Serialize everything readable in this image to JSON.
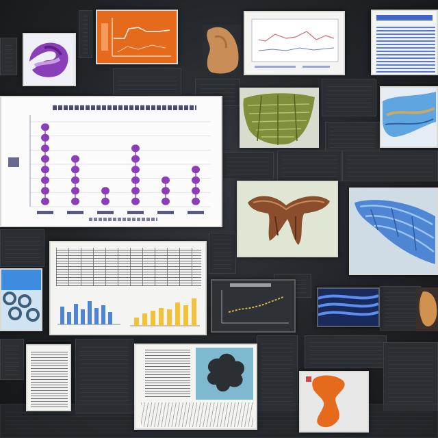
{
  "collage": {
    "thumbnails": [
      {
        "kind": "purple-molecule"
      },
      {
        "kind": "orange-plot"
      },
      {
        "kind": "tan-shape"
      },
      {
        "kind": "line-plot"
      },
      {
        "kind": "blue-text-document"
      },
      {
        "kind": "green-mesh"
      },
      {
        "kind": "blue-surface"
      },
      {
        "kind": "brown-structure"
      },
      {
        "kind": "blue-folds"
      },
      {
        "kind": "table-and-bar-charts"
      },
      {
        "kind": "blue-lattice"
      },
      {
        "kind": "dark-scatter"
      },
      {
        "kind": "blue-bands"
      },
      {
        "kind": "gray-text-document"
      },
      {
        "kind": "leaf-scan-document"
      },
      {
        "kind": "orange-bone"
      }
    ],
    "colors": {
      "purple": "#8a3fb8",
      "orange": "#e66a1c",
      "blue": "#4f86d4",
      "green": "#7f8f3c",
      "brown": "#8a4e2c",
      "yellow": "#f0c23a"
    },
    "featured_chart": {
      "type": "dot-column",
      "columns": [
        {
          "dots": 8
        },
        {
          "dots": 5
        },
        {
          "dots": 2
        },
        {
          "dots": 6
        },
        {
          "dots": 3
        },
        {
          "dots": 4
        }
      ]
    }
  }
}
